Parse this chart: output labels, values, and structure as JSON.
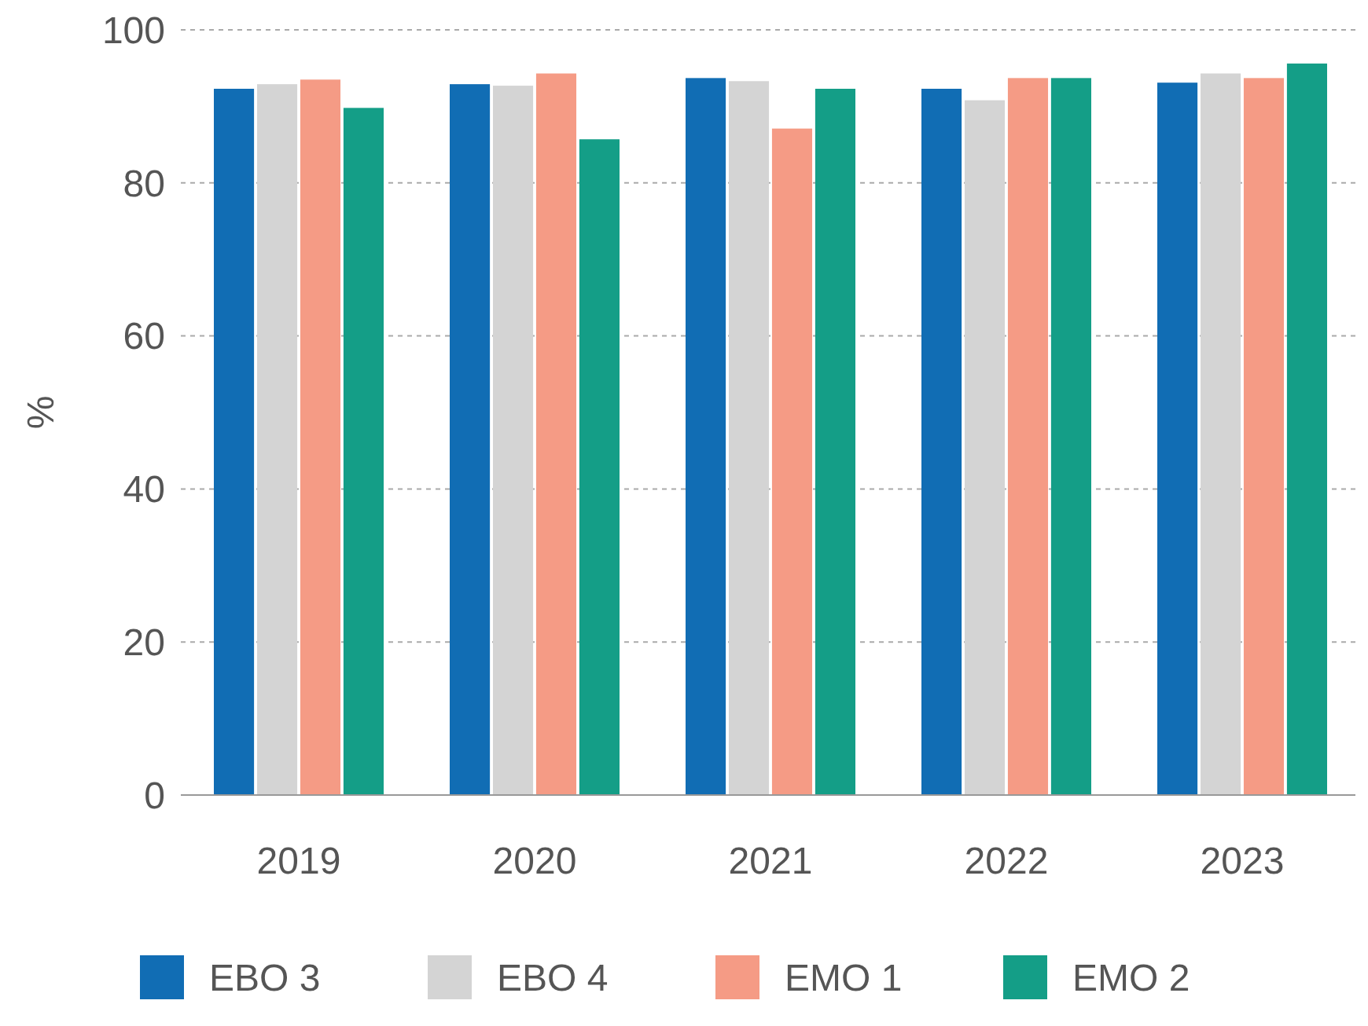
{
  "chart_data": {
    "type": "bar",
    "ylabel": "%",
    "categories": [
      "2019",
      "2020",
      "2021",
      "2022",
      "2023"
    ],
    "series": [
      {
        "name": "EBO 3",
        "color": "#116db4",
        "values": [
          92.3,
          92.9,
          93.7,
          92.3,
          93.1
        ]
      },
      {
        "name": "EBO 4",
        "color": "#d4d4d4",
        "values": [
          92.9,
          92.7,
          93.3,
          90.8,
          94.3
        ]
      },
      {
        "name": "EMO 1",
        "color": "#f59b85",
        "values": [
          93.5,
          94.3,
          87.1,
          93.7,
          93.7
        ]
      },
      {
        "name": "EMO 2",
        "color": "#149e87",
        "values": [
          89.8,
          85.7,
          92.3,
          93.7,
          95.6
        ]
      }
    ],
    "ylim": [
      0,
      100
    ],
    "yticks": [
      0,
      20,
      40,
      60,
      80,
      100
    ],
    "grid": "y",
    "legend": "bottom"
  }
}
